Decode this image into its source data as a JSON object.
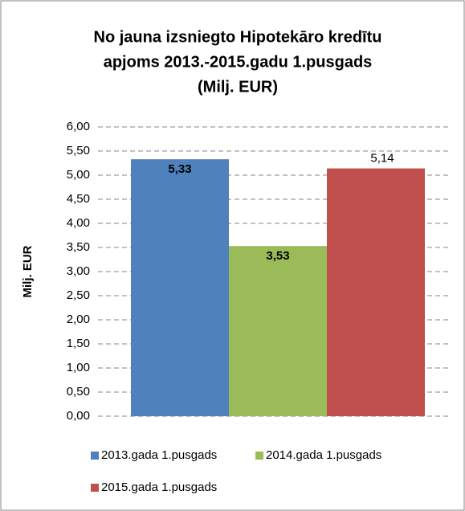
{
  "chart_data": {
    "type": "bar",
    "title": [
      "No jauna izsniegto Hipotekāro kredītu",
      "apjoms 2013.-2015.gadu 1.pusgads",
      "(Milj. EUR)"
    ],
    "ylabel": "Milj. EUR",
    "categories": [
      null
    ],
    "series": [
      {
        "name": "2013.gada 1.pusgads",
        "color": "#4f81bd",
        "values": [
          5.33
        ],
        "value_labels": [
          "5,33"
        ]
      },
      {
        "name": "2014.gada 1.pusgads",
        "color": "#9bbb59",
        "values": [
          3.53
        ],
        "value_labels": [
          "3,53"
        ]
      },
      {
        "name": "2015.gada 1.pusgads",
        "color": "#c0504d",
        "values": [
          5.14
        ],
        "value_labels": [
          "5,14"
        ]
      }
    ],
    "ylim": [
      0,
      6
    ],
    "yticks": [
      {
        "value": 0,
        "label": "0,00"
      },
      {
        "value": 0.5,
        "label": "0,50"
      },
      {
        "value": 1,
        "label": "1,00"
      },
      {
        "value": 1.5,
        "label": "1,50"
      },
      {
        "value": 2,
        "label": "2,00"
      },
      {
        "value": 2.5,
        "label": "2,50"
      },
      {
        "value": 3,
        "label": "3,00"
      },
      {
        "value": 3.5,
        "label": "3,50"
      },
      {
        "value": 4,
        "label": "4,00"
      },
      {
        "value": 4.5,
        "label": "4,50"
      },
      {
        "value": 5,
        "label": "5,00"
      },
      {
        "value": 5.5,
        "label": "5,50"
      },
      {
        "value": 6,
        "label": "6,00"
      }
    ],
    "grid": true,
    "legend": "bottom"
  }
}
